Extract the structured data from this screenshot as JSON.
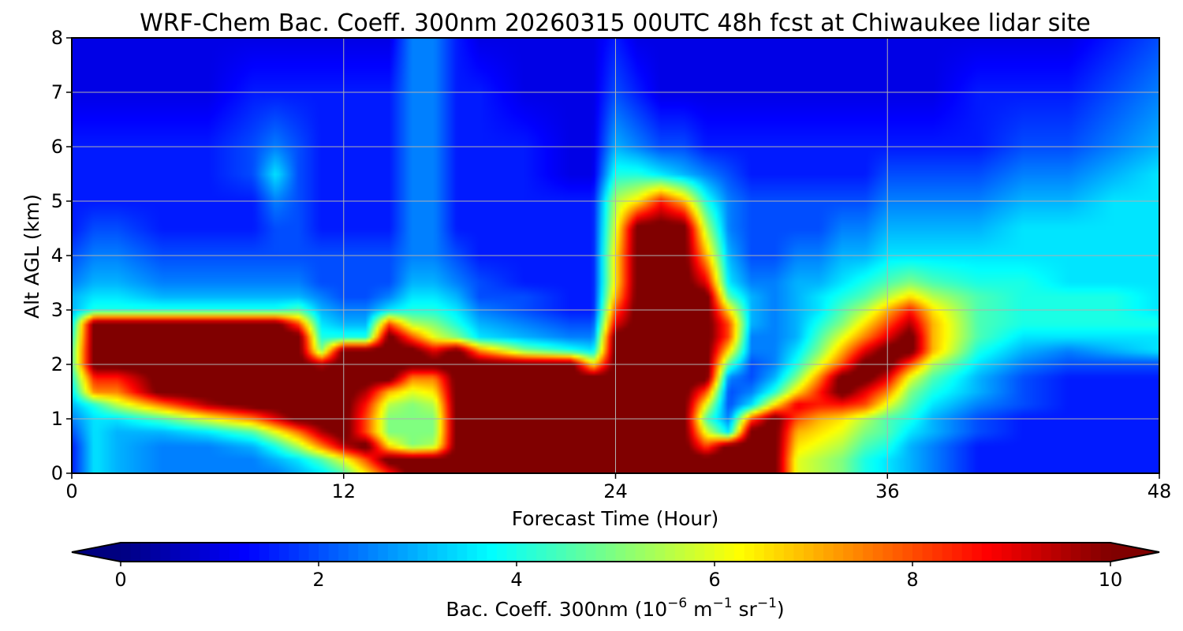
{
  "chart_data": {
    "type": "heatmap",
    "title": "WRF-Chem Bac. Coeff. 300nm  20260315 00UTC 48h fcst at Chiwaukee lidar site",
    "xlabel": "Forecast Time (Hour)",
    "ylabel": "Alt AGL (km)",
    "xlim": [
      0,
      48
    ],
    "ylim": [
      0,
      8
    ],
    "x_ticks": [
      0,
      12,
      24,
      36,
      48
    ],
    "y_ticks": [
      0,
      1,
      2,
      3,
      4,
      5,
      6,
      7,
      8
    ],
    "grid": true,
    "colormap": "jet",
    "colorbar": {
      "orientation": "horizontal",
      "placement": "bottom",
      "range": [
        0,
        10
      ],
      "ticks": [
        0,
        2,
        4,
        6,
        8,
        10
      ],
      "extend": "both",
      "label_main": "Bac. Coeff. 300nm  (10",
      "label_exp1": "−6",
      "label_mid": " m",
      "label_exp2": "−1",
      "label_tail": " sr",
      "label_exp3": "−1",
      "label_close": ")"
    },
    "x": [
      0,
      1,
      2,
      4,
      6,
      8,
      9,
      10,
      11,
      12,
      13,
      14,
      15,
      16,
      17,
      18,
      20,
      22,
      23,
      24,
      25,
      26,
      27,
      28,
      29,
      30,
      31,
      32,
      33,
      34,
      35,
      36,
      37,
      38,
      40,
      42,
      44,
      46,
      48
    ],
    "y": [
      0,
      0.25,
      0.5,
      0.75,
      1,
      1.25,
      1.5,
      1.75,
      2,
      2.25,
      2.5,
      2.75,
      3,
      3.25,
      3.5,
      4,
      4.5,
      5,
      5.5,
      6,
      7,
      8
    ],
    "z": [
      [
        1.5,
        3.5,
        3.0,
        2.5,
        2.5,
        2.5,
        2.5,
        3.0,
        3.5,
        4.5,
        6.5,
        8.5,
        10.5,
        10.5,
        10.5,
        10.5,
        10.5,
        10.5,
        10.5,
        10.5,
        10.5,
        10.5,
        10.5,
        10.5,
        10.5,
        10.5,
        10.5,
        6.0,
        5.5,
        5.0,
        4.0,
        3.5,
        3.0,
        2.5,
        1.5,
        1.5,
        1.5,
        1.5,
        1.5
      ],
      [
        1.5,
        3.5,
        3.0,
        2.5,
        2.5,
        2.5,
        3.0,
        3.5,
        4.5,
        6.0,
        8.0,
        10.5,
        10.5,
        10.5,
        10.5,
        10.5,
        10.5,
        10.5,
        10.5,
        10.5,
        10.5,
        10.5,
        10.5,
        10.5,
        10.5,
        10.5,
        10.5,
        6.0,
        5.5,
        5.0,
        4.0,
        3.5,
        3.0,
        2.5,
        1.5,
        1.5,
        1.5,
        1.5,
        1.5
      ],
      [
        1.5,
        3.5,
        3.0,
        2.5,
        2.5,
        3.0,
        4.0,
        5.5,
        7.5,
        9.5,
        10.5,
        6.5,
        5.0,
        5.5,
        10.5,
        10.5,
        10.5,
        10.5,
        10.5,
        10.5,
        10.5,
        10.5,
        10.5,
        8.0,
        10.5,
        10.5,
        10.5,
        6.5,
        6.0,
        5.5,
        4.5,
        4.0,
        3.0,
        2.5,
        1.5,
        1.5,
        1.5,
        1.5,
        1.5
      ],
      [
        2.0,
        3.5,
        3.0,
        3.0,
        3.5,
        4.5,
        6.0,
        7.5,
        9.5,
        10.5,
        8.0,
        5.0,
        5.0,
        5.0,
        10.5,
        10.5,
        10.5,
        10.5,
        10.5,
        10.5,
        10.5,
        10.5,
        10.5,
        6.0,
        3.5,
        10.5,
        10.5,
        7.0,
        6.5,
        6.0,
        5.0,
        4.5,
        3.5,
        3.0,
        2.0,
        1.5,
        1.5,
        1.5,
        1.5
      ],
      [
        2.5,
        3.5,
        3.5,
        4.5,
        6.0,
        7.5,
        9.0,
        10.5,
        10.5,
        10.5,
        8.0,
        5.0,
        5.0,
        5.0,
        10.5,
        10.5,
        10.5,
        10.5,
        10.5,
        10.5,
        10.5,
        10.5,
        10.5,
        4.5,
        2.5,
        8.0,
        10.5,
        8.0,
        7.0,
        6.5,
        5.5,
        4.5,
        4.0,
        3.0,
        2.0,
        1.5,
        1.5,
        1.5,
        1.5
      ],
      [
        3.0,
        4.0,
        5.5,
        7.5,
        9.5,
        10.5,
        10.5,
        10.5,
        10.5,
        10.5,
        8.5,
        5.5,
        5.0,
        5.5,
        10.5,
        10.5,
        10.5,
        10.5,
        10.5,
        10.5,
        10.5,
        10.5,
        10.5,
        6.0,
        2.0,
        3.5,
        6.5,
        9.0,
        8.5,
        8.5,
        8.0,
        6.0,
        4.5,
        3.5,
        2.5,
        2.0,
        1.5,
        1.5,
        1.5
      ],
      [
        3.5,
        7.5,
        7.5,
        10.5,
        10.5,
        10.5,
        10.5,
        10.5,
        10.5,
        10.5,
        9.5,
        7.0,
        6.0,
        6.5,
        10.5,
        10.5,
        10.5,
        10.5,
        10.5,
        10.5,
        10.5,
        10.5,
        10.5,
        8.0,
        2.0,
        2.5,
        4.0,
        6.5,
        8.5,
        10.5,
        9.0,
        7.5,
        5.0,
        4.0,
        3.0,
        2.0,
        1.5,
        1.5,
        1.5
      ],
      [
        4.0,
        8.5,
        8.5,
        10.5,
        10.5,
        10.5,
        10.5,
        10.5,
        10.5,
        10.5,
        10.5,
        10.5,
        7.5,
        7.5,
        10.5,
        10.5,
        10.5,
        10.5,
        10.5,
        10.5,
        10.5,
        10.5,
        10.5,
        10.5,
        2.5,
        2.0,
        3.0,
        5.0,
        7.5,
        10.5,
        10.5,
        9.0,
        6.0,
        4.5,
        3.0,
        2.0,
        1.5,
        1.5,
        1.5
      ],
      [
        4.5,
        10.5,
        10.5,
        10.5,
        10.5,
        10.5,
        10.5,
        10.5,
        9.5,
        10.5,
        10.5,
        10.5,
        10.5,
        10.5,
        10.5,
        10.5,
        10.5,
        10.5,
        6.5,
        10.5,
        10.5,
        10.5,
        10.5,
        10.5,
        4.5,
        2.0,
        2.5,
        4.0,
        6.0,
        8.0,
        10.5,
        10.5,
        8.0,
        5.5,
        3.5,
        2.5,
        2.0,
        2.0,
        2.0
      ],
      [
        4.5,
        10.5,
        10.5,
        10.5,
        10.5,
        10.5,
        10.5,
        10.5,
        5.0,
        10.5,
        10.5,
        10.5,
        10.5,
        9.0,
        10.5,
        7.5,
        5.0,
        4.0,
        3.5,
        10.5,
        10.5,
        10.5,
        10.5,
        10.5,
        6.5,
        2.5,
        2.5,
        3.5,
        5.0,
        7.0,
        9.0,
        10.5,
        10.5,
        7.0,
        4.0,
        3.0,
        2.5,
        3.0,
        3.5
      ],
      [
        4.0,
        10.5,
        10.5,
        10.5,
        10.5,
        10.5,
        10.5,
        10.5,
        4.0,
        4.0,
        4.0,
        10.5,
        8.0,
        6.0,
        5.0,
        3.5,
        3.0,
        2.5,
        2.5,
        10.5,
        10.5,
        10.5,
        10.5,
        10.5,
        8.0,
        2.5,
        2.5,
        3.0,
        4.5,
        6.0,
        7.5,
        9.0,
        10.5,
        7.0,
        4.5,
        3.5,
        3.5,
        3.5,
        3.5
      ],
      [
        3.5,
        10.5,
        10.5,
        10.5,
        10.5,
        10.5,
        10.5,
        8.0,
        3.5,
        3.0,
        3.0,
        8.0,
        5.5,
        5.0,
        4.0,
        3.0,
        2.5,
        2.0,
        2.0,
        9.0,
        10.5,
        10.5,
        10.5,
        10.5,
        8.0,
        3.0,
        2.5,
        3.0,
        4.0,
        5.0,
        6.5,
        8.0,
        9.5,
        7.0,
        4.5,
        4.0,
        4.0,
        4.0,
        4.0
      ],
      [
        3.0,
        4.0,
        4.0,
        4.0,
        4.0,
        4.0,
        4.0,
        4.5,
        3.0,
        2.5,
        2.5,
        3.5,
        4.0,
        4.0,
        3.5,
        2.5,
        2.0,
        1.5,
        1.5,
        8.0,
        10.5,
        10.5,
        10.5,
        10.5,
        6.5,
        3.0,
        2.5,
        3.0,
        3.5,
        4.5,
        5.5,
        7.0,
        8.5,
        6.5,
        4.5,
        4.0,
        4.0,
        4.0,
        3.5
      ],
      [
        3.0,
        3.5,
        3.5,
        3.0,
        3.0,
        3.0,
        3.0,
        3.0,
        2.5,
        2.0,
        2.0,
        2.5,
        3.5,
        3.5,
        3.0,
        2.0,
        2.0,
        1.5,
        1.5,
        7.0,
        10.5,
        10.5,
        10.5,
        10.5,
        4.5,
        3.0,
        2.5,
        3.0,
        3.5,
        4.0,
        4.5,
        5.5,
        6.5,
        5.5,
        4.5,
        4.0,
        4.0,
        4.0,
        3.5
      ],
      [
        2.5,
        3.0,
        3.0,
        2.5,
        2.5,
        2.5,
        2.5,
        2.5,
        2.0,
        2.0,
        2.0,
        2.0,
        3.0,
        3.0,
        2.5,
        2.0,
        1.5,
        1.5,
        1.5,
        6.5,
        10.5,
        10.5,
        10.5,
        9.0,
        3.5,
        2.5,
        2.5,
        3.0,
        3.0,
        3.5,
        4.0,
        4.5,
        5.0,
        4.5,
        4.0,
        4.0,
        3.5,
        3.5,
        3.5
      ],
      [
        2.0,
        2.5,
        2.5,
        2.0,
        2.0,
        2.0,
        2.0,
        2.0,
        2.0,
        2.0,
        2.0,
        2.0,
        2.5,
        2.5,
        2.0,
        1.5,
        1.5,
        1.5,
        1.5,
        6.5,
        10.5,
        10.5,
        10.5,
        7.0,
        3.0,
        2.0,
        2.0,
        2.5,
        2.5,
        3.0,
        3.0,
        3.5,
        3.5,
        3.5,
        3.5,
        3.5,
        3.5,
        3.5,
        3.5
      ],
      [
        1.5,
        2.0,
        2.0,
        1.5,
        1.5,
        1.5,
        2.0,
        2.0,
        1.5,
        1.5,
        1.5,
        1.5,
        2.5,
        2.5,
        1.5,
        1.5,
        1.5,
        1.5,
        1.5,
        6.0,
        10.5,
        10.5,
        10.5,
        5.5,
        2.5,
        2.0,
        2.0,
        2.0,
        2.0,
        2.5,
        2.5,
        3.0,
        3.0,
        3.0,
        3.0,
        3.5,
        3.5,
        3.5,
        3.5
      ],
      [
        1.5,
        1.5,
        1.5,
        1.5,
        1.5,
        1.5,
        2.5,
        2.0,
        1.5,
        1.5,
        1.5,
        1.5,
        2.5,
        2.5,
        1.5,
        1.5,
        1.5,
        1.5,
        1.5,
        5.5,
        6.5,
        8.5,
        7.0,
        4.0,
        2.5,
        2.0,
        2.0,
        2.0,
        2.0,
        2.0,
        2.0,
        2.5,
        2.5,
        2.5,
        2.5,
        3.0,
        3.0,
        3.5,
        3.5
      ],
      [
        1.5,
        1.5,
        1.5,
        1.5,
        1.5,
        2.0,
        3.5,
        2.0,
        1.5,
        1.5,
        1.5,
        1.5,
        2.5,
        2.5,
        1.5,
        1.5,
        1.5,
        1.0,
        1.0,
        4.0,
        4.0,
        3.5,
        3.0,
        2.5,
        2.0,
        1.5,
        1.5,
        1.5,
        1.5,
        1.5,
        1.5,
        2.0,
        2.0,
        2.0,
        2.0,
        2.5,
        2.5,
        3.0,
        3.5
      ],
      [
        1.5,
        1.5,
        1.5,
        1.5,
        1.5,
        2.0,
        2.5,
        2.0,
        1.5,
        1.5,
        1.5,
        1.5,
        2.5,
        2.5,
        1.5,
        1.5,
        1.5,
        1.0,
        1.0,
        3.0,
        2.5,
        2.0,
        2.0,
        1.5,
        1.5,
        1.5,
        1.5,
        1.5,
        1.5,
        1.5,
        1.5,
        1.5,
        1.5,
        1.5,
        1.5,
        2.0,
        2.0,
        2.5,
        3.0
      ],
      [
        1.0,
        1.0,
        1.0,
        1.0,
        1.0,
        1.5,
        1.5,
        1.5,
        1.5,
        1.5,
        1.5,
        1.5,
        2.5,
        2.5,
        1.5,
        1.5,
        1.0,
        1.0,
        1.0,
        2.0,
        1.5,
        1.0,
        1.0,
        1.0,
        1.0,
        1.0,
        1.0,
        1.0,
        1.0,
        1.0,
        1.0,
        1.0,
        1.0,
        1.0,
        1.5,
        1.5,
        1.5,
        2.0,
        2.5
      ],
      [
        1.0,
        1.0,
        1.0,
        1.0,
        1.0,
        1.0,
        1.0,
        1.0,
        1.0,
        1.0,
        1.0,
        1.0,
        2.5,
        2.5,
        1.5,
        1.0,
        1.0,
        1.0,
        1.0,
        1.5,
        1.0,
        1.0,
        1.0,
        1.0,
        1.0,
        1.0,
        1.0,
        1.0,
        1.0,
        1.0,
        1.0,
        1.0,
        1.0,
        1.0,
        1.0,
        1.0,
        1.0,
        1.5,
        2.0
      ]
    ]
  }
}
